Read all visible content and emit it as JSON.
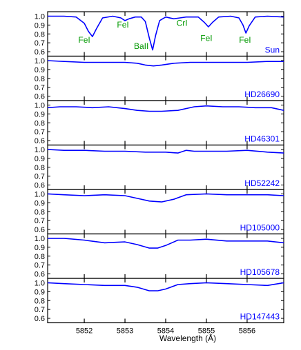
{
  "chart_data": {
    "type": "line",
    "xlabel": "Wavelength (Å)",
    "xlim": [
      5851.1,
      5856.9
    ],
    "x_ticks": [
      5852,
      5853,
      5854,
      5855,
      5856
    ],
    "y_ticks": [
      0.6,
      0.7,
      0.8,
      0.9,
      1.0
    ],
    "ylim": [
      0.55,
      1.05
    ],
    "line_color": "#0000ff",
    "label_color_lines": "#009900",
    "panels": [
      {
        "name": "Sun",
        "ylim": [
          0.55,
          1.05
        ],
        "line_labels": [
          {
            "text": "FeI",
            "x": 5852.0,
            "y": 0.7
          },
          {
            "text": "FeI",
            "x": 5852.95,
            "y": 0.87
          },
          {
            "text": "BaII",
            "x": 5853.4,
            "y": 0.63
          },
          {
            "text": "CrI",
            "x": 5854.4,
            "y": 0.89
          },
          {
            "text": "FeI",
            "x": 5855.0,
            "y": 0.72
          },
          {
            "text": "FeI",
            "x": 5855.95,
            "y": 0.7
          }
        ],
        "x": [
          5851.1,
          5851.5,
          5851.8,
          5852.0,
          5852.1,
          5852.2,
          5852.3,
          5852.45,
          5852.7,
          5852.9,
          5853.0,
          5853.1,
          5853.25,
          5853.4,
          5853.5,
          5853.6,
          5853.68,
          5853.75,
          5853.85,
          5854.0,
          5854.2,
          5854.35,
          5854.5,
          5854.8,
          5854.95,
          5855.05,
          5855.15,
          5855.3,
          5855.6,
          5855.8,
          5855.9,
          5855.97,
          5856.05,
          5856.2,
          5856.5,
          5856.9
        ],
        "y": [
          1.0,
          1.0,
          0.99,
          0.92,
          0.83,
          0.77,
          0.86,
          0.98,
          1.0,
          0.98,
          0.95,
          0.97,
          0.99,
          0.99,
          0.94,
          0.75,
          0.62,
          0.78,
          0.95,
          0.99,
          0.97,
          0.98,
          0.99,
          0.99,
          0.93,
          0.88,
          0.93,
          0.99,
          1.0,
          0.98,
          0.9,
          0.81,
          0.89,
          0.99,
          1.0,
          0.99
        ]
      },
      {
        "name": "HD26690",
        "ylim": [
          0.55,
          1.05
        ],
        "x": [
          5851.1,
          5851.5,
          5852.0,
          5852.5,
          5853.0,
          5853.3,
          5853.5,
          5853.7,
          5853.9,
          5854.2,
          5854.6,
          5855.0,
          5855.5,
          5856.0,
          5856.5,
          5856.9
        ],
        "y": [
          1.0,
          0.99,
          0.98,
          0.98,
          0.98,
          0.97,
          0.95,
          0.94,
          0.95,
          0.97,
          0.98,
          0.98,
          0.98,
          0.98,
          0.99,
          0.99
        ]
      },
      {
        "name": "HD46301",
        "ylim": [
          0.55,
          1.05
        ],
        "x": [
          5851.1,
          5851.4,
          5851.8,
          5852.2,
          5852.6,
          5853.0,
          5853.3,
          5853.6,
          5853.9,
          5854.3,
          5854.7,
          5855.0,
          5855.4,
          5855.8,
          5856.2,
          5856.6,
          5856.9
        ],
        "y": [
          0.97,
          0.98,
          0.98,
          0.97,
          0.98,
          0.96,
          0.94,
          0.93,
          0.93,
          0.94,
          0.98,
          0.99,
          0.98,
          0.98,
          0.97,
          0.97,
          0.94
        ]
      },
      {
        "name": "HD52242",
        "ylim": [
          0.55,
          1.05
        ],
        "x": [
          5851.1,
          5851.5,
          5852.0,
          5852.5,
          5853.0,
          5853.5,
          5854.0,
          5854.3,
          5854.5,
          5854.7,
          5855.0,
          5855.5,
          5856.0,
          5856.5,
          5856.9
        ],
        "y": [
          1.0,
          0.99,
          0.99,
          0.98,
          0.98,
          0.97,
          0.97,
          0.96,
          0.99,
          0.98,
          0.98,
          0.98,
          0.99,
          0.97,
          0.96
        ]
      },
      {
        "name": "HD105000",
        "ylim": [
          0.55,
          1.05
        ],
        "x": [
          5851.1,
          5851.5,
          5852.0,
          5852.5,
          5853.0,
          5853.3,
          5853.6,
          5853.9,
          5854.2,
          5854.5,
          5855.0,
          5855.5,
          5856.0,
          5856.5,
          5856.9
        ],
        "y": [
          1.0,
          0.99,
          0.98,
          0.99,
          0.98,
          0.95,
          0.92,
          0.91,
          0.94,
          0.99,
          1.0,
          0.99,
          0.99,
          0.99,
          0.98
        ]
      },
      {
        "name": "HD105678",
        "ylim": [
          0.55,
          1.05
        ],
        "x": [
          5851.1,
          5851.5,
          5852.0,
          5852.5,
          5853.0,
          5853.3,
          5853.6,
          5853.8,
          5854.0,
          5854.3,
          5854.6,
          5855.0,
          5855.5,
          5856.0,
          5856.5,
          5856.9
        ],
        "y": [
          1.0,
          1.0,
          0.98,
          0.95,
          0.96,
          0.93,
          0.89,
          0.89,
          0.92,
          0.98,
          0.98,
          0.99,
          0.97,
          0.97,
          0.97,
          0.95
        ]
      },
      {
        "name": "HD147443",
        "ylim": [
          0.55,
          1.05
        ],
        "x": [
          5851.1,
          5851.5,
          5852.0,
          5852.5,
          5853.0,
          5853.3,
          5853.6,
          5853.8,
          5854.0,
          5854.3,
          5854.6,
          5855.0,
          5855.5,
          5856.0,
          5856.5,
          5856.9
        ],
        "y": [
          1.0,
          0.99,
          0.98,
          0.97,
          0.97,
          0.95,
          0.91,
          0.91,
          0.93,
          0.98,
          0.99,
          1.0,
          0.99,
          0.98,
          0.97,
          1.0
        ]
      }
    ]
  }
}
